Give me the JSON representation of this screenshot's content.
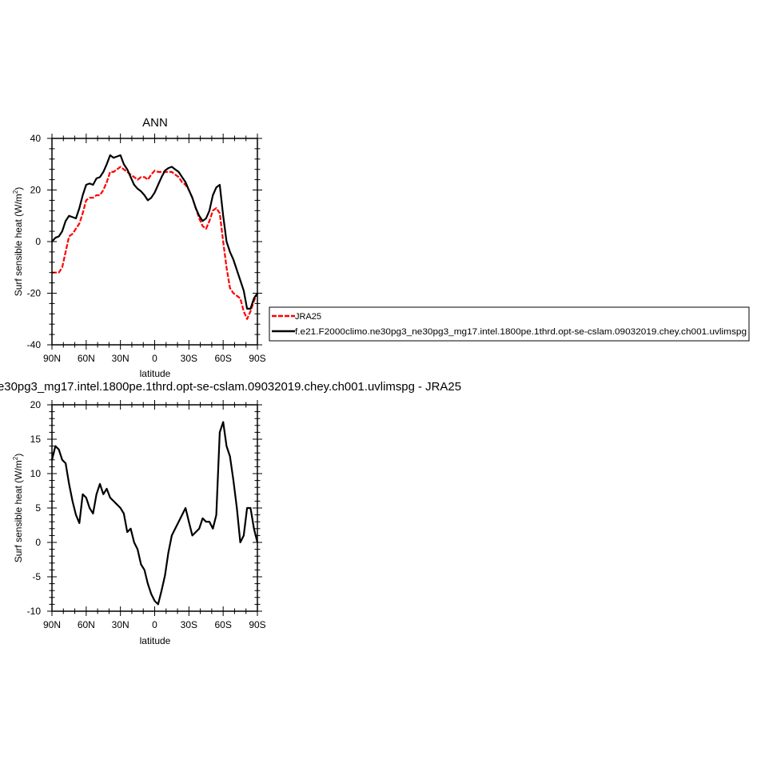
{
  "chart_data": [
    {
      "type": "line",
      "title": "ANN",
      "xlabel": "latitude",
      "ylabel": "Surf sensible heat (W/m",
      "ylabel_superscript": "2",
      "ylabel_suffix": ")",
      "xlim": [
        90,
        -90
      ],
      "ylim": [
        -40,
        40
      ],
      "x_ticks": [
        90,
        60,
        30,
        0,
        -30,
        -60,
        -90
      ],
      "x_tick_labels": [
        "90N",
        "60N",
        "30N",
        "0",
        "30S",
        "60S",
        "90S"
      ],
      "y_ticks": [
        -40,
        -20,
        0,
        20,
        40
      ],
      "y_tick_labels": [
        "-40",
        "-20",
        "0",
        "20",
        "40"
      ],
      "legend_position": "right",
      "series": [
        {
          "name": "JRA25",
          "color": "#ff0000",
          "dash": "dashed",
          "x": [
            90,
            87,
            84,
            81,
            78,
            75,
            72,
            69,
            66,
            63,
            60,
            57,
            54,
            51,
            48,
            45,
            42,
            39,
            36,
            33,
            30,
            27,
            24,
            21,
            18,
            15,
            12,
            9,
            6,
            3,
            0,
            -3,
            -6,
            -9,
            -12,
            -15,
            -18,
            -21,
            -24,
            -27,
            -30,
            -33,
            -36,
            -39,
            -42,
            -45,
            -48,
            -51,
            -54,
            -57,
            -60,
            -63,
            -66,
            -69,
            -72,
            -75,
            -78,
            -81,
            -84,
            -87,
            -90
          ],
          "y": [
            -12,
            -12,
            -12,
            -10,
            -4,
            2,
            3,
            5,
            7,
            11,
            16,
            17,
            17,
            18,
            18,
            20,
            23,
            27,
            27,
            28,
            29,
            28,
            27,
            26,
            25,
            24,
            25,
            25,
            24,
            26,
            27.5,
            27,
            27,
            27,
            27,
            27,
            26,
            25,
            23,
            22,
            20,
            17,
            13,
            9,
            6,
            5,
            8,
            12,
            13,
            11,
            0,
            -10,
            -18,
            -20,
            -21,
            -22,
            -27,
            -30,
            -27,
            -23,
            -20
          ]
        },
        {
          "name": "f.e21.F2000climo.ne30pg3_ne30pg3_mg17.intel.1800pe.1thrd.opt-se-cslam.09032019.chey.ch001.uvlimspg",
          "color": "#000000",
          "dash": "solid",
          "x": [
            90,
            87,
            84,
            81,
            78,
            75,
            72,
            69,
            66,
            63,
            60,
            57,
            54,
            51,
            48,
            45,
            42,
            39,
            36,
            33,
            30,
            27,
            24,
            21,
            18,
            15,
            12,
            9,
            6,
            3,
            0,
            -3,
            -6,
            -9,
            -12,
            -15,
            -18,
            -21,
            -24,
            -27,
            -30,
            -33,
            -36,
            -39,
            -42,
            -45,
            -48,
            -51,
            -54,
            -57,
            -60,
            -63,
            -66,
            -69,
            -72,
            -75,
            -78,
            -81,
            -84,
            -87,
            -90
          ],
          "y": [
            0,
            1.5,
            2,
            4,
            8,
            10,
            9.5,
            9,
            13,
            18,
            22,
            22.5,
            22,
            24.5,
            25,
            27,
            30,
            33.5,
            32.5,
            33,
            33.5,
            30,
            28,
            25,
            22,
            20.5,
            19.5,
            18,
            16,
            17,
            19,
            22,
            25,
            27.5,
            28.5,
            29,
            28,
            27,
            25,
            23,
            20,
            17,
            13,
            10,
            8,
            9,
            12,
            18,
            21,
            22,
            10,
            0,
            -4,
            -7,
            -11,
            -15,
            -19,
            -26,
            -26,
            -22,
            -20
          ]
        }
      ]
    },
    {
      "type": "line",
      "title": "e30pg3_mg17.intel.1800pe.1thrd.opt-se-cslam.09032019.chey.ch001.uvlimspg - JRA25",
      "xlabel": "latitude",
      "ylabel": "Surf sensible heat (W/m",
      "ylabel_superscript": "2",
      "ylabel_suffix": ")",
      "xlim": [
        90,
        -90
      ],
      "ylim": [
        -10,
        20
      ],
      "x_ticks": [
        90,
        60,
        30,
        0,
        -30,
        -60,
        -90
      ],
      "x_tick_labels": [
        "90N",
        "60N",
        "30N",
        "0",
        "30S",
        "60S",
        "90S"
      ],
      "y_ticks": [
        -10,
        -5,
        0,
        5,
        10,
        15,
        20
      ],
      "y_tick_labels": [
        "-10",
        "-5",
        "0",
        "5",
        "10",
        "15",
        "20"
      ],
      "series": [
        {
          "color": "#000000",
          "dash": "solid",
          "x": [
            90,
            87,
            84,
            81,
            78,
            75,
            72,
            69,
            66,
            63,
            60,
            57,
            54,
            51,
            48,
            45,
            42,
            39,
            36,
            33,
            30,
            27,
            24,
            21,
            18,
            15,
            12,
            9,
            6,
            3,
            0,
            -3,
            -6,
            -9,
            -12,
            -15,
            -18,
            -21,
            -24,
            -27,
            -30,
            -33,
            -36,
            -39,
            -42,
            -45,
            -48,
            -51,
            -54,
            -57,
            -60,
            -63,
            -66,
            -69,
            -72,
            -75,
            -78,
            -81,
            -84,
            -87,
            -90
          ],
          "y": [
            12,
            14,
            13.5,
            12,
            11.5,
            8.5,
            6,
            4,
            2.8,
            7,
            6.5,
            5,
            4.2,
            7,
            8.5,
            7,
            7.8,
            6.5,
            6,
            5.5,
            5,
            4.2,
            1.5,
            2,
            0,
            -1,
            -3.2,
            -4,
            -6,
            -7.5,
            -8.5,
            -9,
            -7,
            -4.8,
            -1.5,
            1,
            2,
            3,
            4,
            5,
            3,
            1,
            1.5,
            2,
            3.5,
            3,
            3,
            2,
            4,
            16,
            17.5,
            14,
            12.5,
            9,
            5,
            0,
            1,
            5,
            5,
            2,
            0
          ]
        }
      ]
    }
  ]
}
